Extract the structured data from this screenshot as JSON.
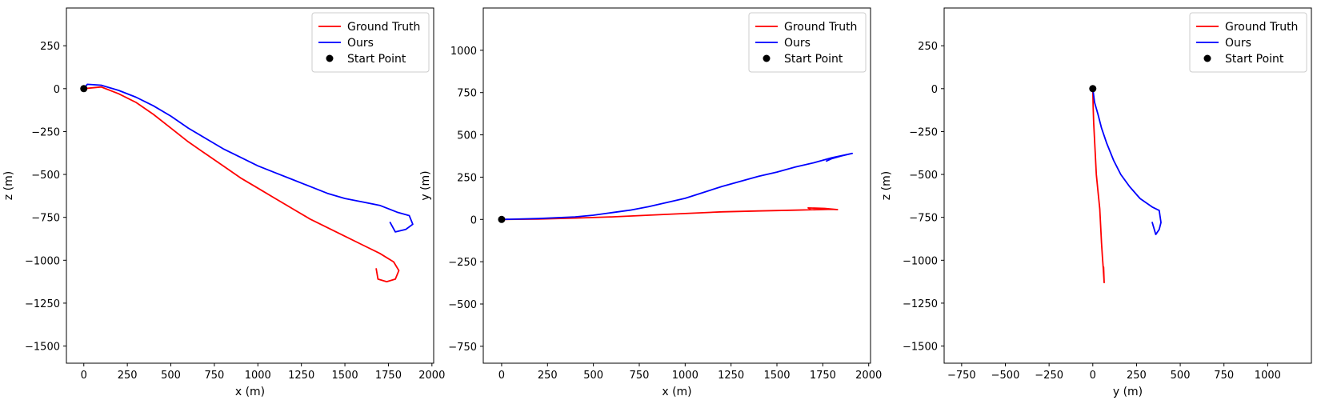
{
  "chart_data": [
    {
      "type": "line",
      "xlabel": "x (m)",
      "ylabel": "z (m)",
      "xlim": [
        -100,
        2010
      ],
      "ylim": [
        -1600,
        470
      ],
      "xticks": [
        0,
        250,
        500,
        750,
        1000,
        1250,
        1500,
        1750,
        2000
      ],
      "yticks": [
        250,
        0,
        -250,
        -500,
        -750,
        -1000,
        -1250,
        -1500
      ],
      "xtick_labels": [
        "0",
        "250",
        "500",
        "750",
        "1000",
        "1250",
        "1500",
        "1750",
        "2000"
      ],
      "ytick_labels": [
        "250",
        "0",
        "−250",
        "−500",
        "−750",
        "−1000",
        "−1250",
        "−1500"
      ],
      "grid": false,
      "legend_position": "top-right",
      "legend": [
        "Ground Truth",
        "Ours",
        "Start Point"
      ],
      "series": [
        {
          "name": "Ground Truth",
          "color": "#ff0000",
          "points": [
            [
              0,
              0
            ],
            [
              100,
              10
            ],
            [
              200,
              -30
            ],
            [
              300,
              -80
            ],
            [
              400,
              -150
            ],
            [
              500,
              -230
            ],
            [
              600,
              -310
            ],
            [
              700,
              -380
            ],
            [
              800,
              -450
            ],
            [
              900,
              -520
            ],
            [
              1000,
              -580
            ],
            [
              1100,
              -640
            ],
            [
              1200,
              -700
            ],
            [
              1300,
              -760
            ],
            [
              1400,
              -810
            ],
            [
              1500,
              -860
            ],
            [
              1600,
              -910
            ],
            [
              1700,
              -960
            ],
            [
              1780,
              -1010
            ],
            [
              1810,
              -1060
            ],
            [
              1790,
              -1110
            ],
            [
              1740,
              -1125
            ],
            [
              1690,
              -1110
            ],
            [
              1680,
              -1050
            ]
          ]
        },
        {
          "name": "Ours",
          "color": "#0000ff",
          "points": [
            [
              0,
              0
            ],
            [
              20,
              25
            ],
            [
              100,
              20
            ],
            [
              200,
              -10
            ],
            [
              300,
              -50
            ],
            [
              400,
              -100
            ],
            [
              500,
              -160
            ],
            [
              600,
              -230
            ],
            [
              700,
              -290
            ],
            [
              800,
              -350
            ],
            [
              900,
              -400
            ],
            [
              1000,
              -450
            ],
            [
              1100,
              -490
            ],
            [
              1200,
              -530
            ],
            [
              1300,
              -570
            ],
            [
              1400,
              -610
            ],
            [
              1500,
              -640
            ],
            [
              1600,
              -660
            ],
            [
              1700,
              -680
            ],
            [
              1800,
              -720
            ],
            [
              1870,
              -740
            ],
            [
              1890,
              -790
            ],
            [
              1850,
              -820
            ],
            [
              1790,
              -835
            ],
            [
              1760,
              -780
            ]
          ]
        }
      ],
      "start_point": {
        "name": "Start Point",
        "color": "#000000",
        "x": 0,
        "y": 0
      }
    },
    {
      "type": "line",
      "xlabel": "x (m)",
      "ylabel": "y (m)",
      "xlim": [
        -100,
        2010
      ],
      "ylim": [
        -850,
        1250
      ],
      "xticks": [
        0,
        250,
        500,
        750,
        1000,
        1250,
        1500,
        1750,
        2000
      ],
      "yticks": [
        1000,
        750,
        500,
        250,
        0,
        -250,
        -500,
        -750
      ],
      "xtick_labels": [
        "0",
        "250",
        "500",
        "750",
        "1000",
        "1250",
        "1500",
        "1750",
        "2000"
      ],
      "ytick_labels": [
        "1000",
        "750",
        "500",
        "250",
        "0",
        "−250",
        "−500",
        "−750"
      ],
      "grid": false,
      "legend_position": "top-right",
      "legend": [
        "Ground Truth",
        "Ours",
        "Start Point"
      ],
      "series": [
        {
          "name": "Ground Truth",
          "color": "#ff0000",
          "points": [
            [
              0,
              0
            ],
            [
              200,
              2
            ],
            [
              400,
              8
            ],
            [
              600,
              15
            ],
            [
              800,
              25
            ],
            [
              1000,
              35
            ],
            [
              1200,
              45
            ],
            [
              1400,
              50
            ],
            [
              1600,
              55
            ],
            [
              1800,
              60
            ],
            [
              1830,
              58
            ],
            [
              1760,
              65
            ],
            [
              1670,
              68
            ],
            [
              1680,
              62
            ]
          ]
        },
        {
          "name": "Ours",
          "color": "#0000ff",
          "points": [
            [
              0,
              0
            ],
            [
              200,
              5
            ],
            [
              400,
              15
            ],
            [
              500,
              25
            ],
            [
              600,
              40
            ],
            [
              700,
              55
            ],
            [
              800,
              75
            ],
            [
              900,
              100
            ],
            [
              1000,
              125
            ],
            [
              1100,
              160
            ],
            [
              1200,
              195
            ],
            [
              1300,
              225
            ],
            [
              1400,
              255
            ],
            [
              1500,
              280
            ],
            [
              1600,
              310
            ],
            [
              1700,
              335
            ],
            [
              1800,
              365
            ],
            [
              1910,
              390
            ],
            [
              1850,
              375
            ],
            [
              1800,
              360
            ],
            [
              1770,
              345
            ]
          ]
        }
      ],
      "start_point": {
        "name": "Start Point",
        "color": "#000000",
        "x": 0,
        "y": 0
      }
    },
    {
      "type": "line",
      "xlabel": "y (m)",
      "ylabel": "z (m)",
      "xlim": [
        -850,
        1250
      ],
      "ylim": [
        -1600,
        470
      ],
      "xticks": [
        -750,
        -500,
        -250,
        0,
        250,
        500,
        750,
        1000
      ],
      "yticks": [
        250,
        0,
        -250,
        -500,
        -750,
        -1000,
        -1250,
        -1500
      ],
      "xtick_labels": [
        "−750",
        "−500",
        "−250",
        "0",
        "250",
        "500",
        "750",
        "1000"
      ],
      "ytick_labels": [
        "250",
        "0",
        "−250",
        "−500",
        "−750",
        "−1000",
        "−1250",
        "−1500"
      ],
      "grid": false,
      "legend_position": "top-right",
      "legend": [
        "Ground Truth",
        "Ours",
        "Start Point"
      ],
      "series": [
        {
          "name": "Ground Truth",
          "color": "#ff0000",
          "points": [
            [
              0,
              0
            ],
            [
              2,
              -100
            ],
            [
              5,
              -200
            ],
            [
              10,
              -300
            ],
            [
              15,
              -400
            ],
            [
              20,
              -500
            ],
            [
              30,
              -600
            ],
            [
              40,
              -700
            ],
            [
              45,
              -800
            ],
            [
              50,
              -900
            ],
            [
              55,
              -980
            ],
            [
              60,
              -1050
            ],
            [
              65,
              -1130
            ],
            [
              62,
              -1040
            ]
          ]
        },
        {
          "name": "Ours",
          "color": "#0000ff",
          "points": [
            [
              0,
              0
            ],
            [
              10,
              -80
            ],
            [
              30,
              -150
            ],
            [
              50,
              -230
            ],
            [
              80,
              -320
            ],
            [
              120,
              -420
            ],
            [
              160,
              -500
            ],
            [
              210,
              -570
            ],
            [
              270,
              -640
            ],
            [
              340,
              -690
            ],
            [
              380,
              -710
            ],
            [
              390,
              -780
            ],
            [
              380,
              -820
            ],
            [
              360,
              -850
            ],
            [
              340,
              -780
            ]
          ]
        }
      ],
      "start_point": {
        "name": "Start Point",
        "color": "#000000",
        "x": 0,
        "y": 0
      }
    }
  ]
}
